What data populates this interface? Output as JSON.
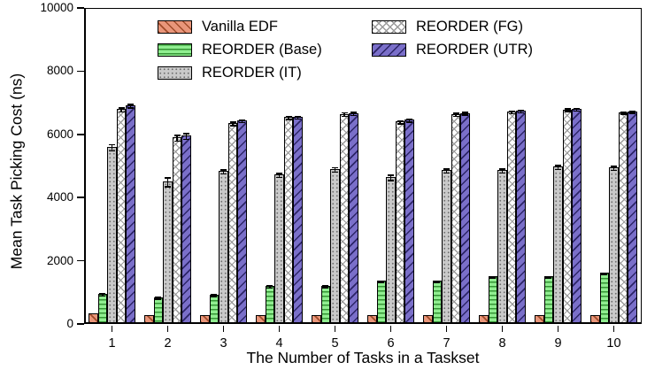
{
  "chart_data": {
    "type": "bar",
    "title": "",
    "xlabel": "The Number of Tasks in a Taskset",
    "ylabel": "Mean Task Picking Cost (ns)",
    "ylim": [
      0,
      10000
    ],
    "y_ticks": [
      0,
      2000,
      4000,
      6000,
      8000,
      10000
    ],
    "categories": [
      "1",
      "2",
      "3",
      "4",
      "5",
      "6",
      "7",
      "8",
      "9",
      "10"
    ],
    "grid": false,
    "legend_position": "top-inside, two columns, no frame",
    "error_bars": true,
    "series": [
      {
        "name": "Vanilla EDF",
        "color": "#E9967A",
        "pattern": "diagonal-backslash",
        "values": [
          330,
          290,
          290,
          290,
          290,
          290,
          285,
          290,
          280,
          280
        ],
        "errors": [
          15,
          15,
          15,
          15,
          15,
          15,
          15,
          15,
          15,
          15
        ]
      },
      {
        "name": "REORDER (Base)",
        "color": "#90EE90",
        "pattern": "horizontal-lines",
        "values": [
          950,
          840,
          930,
          1200,
          1200,
          1370,
          1370,
          1510,
          1510,
          1620
        ],
        "errors": [
          60,
          50,
          50,
          60,
          50,
          45,
          45,
          45,
          45,
          45
        ]
      },
      {
        "name": "REORDER (IT)",
        "color": "#C9C9C9",
        "pattern": "dots",
        "values": [
          5600,
          4510,
          4840,
          4730,
          4900,
          4650,
          4870,
          4870,
          4980,
          4950
        ],
        "errors": [
          120,
          160,
          90,
          85,
          90,
          100,
          80,
          80,
          80,
          80
        ]
      },
      {
        "name": "REORDER (FG)",
        "color": "#FFFFFF",
        "pattern": "crosshatch",
        "values": [
          6800,
          5900,
          6360,
          6550,
          6650,
          6410,
          6640,
          6720,
          6790,
          6700
        ],
        "errors": [
          85,
          110,
          75,
          70,
          80,
          75,
          70,
          60,
          60,
          60
        ]
      },
      {
        "name": "REORDER (UTR)",
        "color": "#7A6FC9",
        "pattern": "diagonal-slash",
        "values": [
          6920,
          5960,
          6440,
          6560,
          6680,
          6470,
          6680,
          6740,
          6800,
          6730
        ],
        "errors": [
          75,
          110,
          65,
          65,
          70,
          70,
          60,
          55,
          60,
          60
        ]
      }
    ]
  }
}
